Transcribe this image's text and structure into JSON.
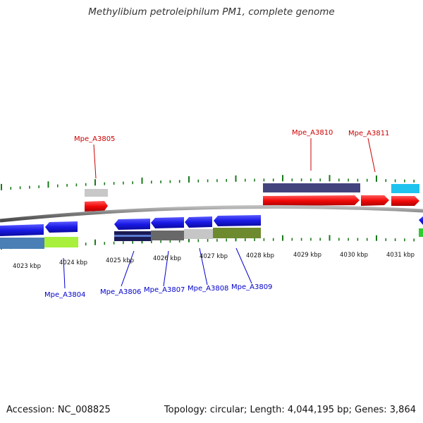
{
  "title": "Methylibium petroleiphilum PM1, complete genome",
  "footer": {
    "accession": "Accession: NC_008825",
    "stats": "Topology: circular; Length: 4,044,195 bp; Genes: 3,864"
  },
  "colors": {
    "forward_label": "#cc0000",
    "reverse_label": "#0000cc",
    "tick": "#1a7a1a",
    "backbone": "#8c8c8c"
  },
  "scale_labels": [
    "4023 kbp",
    "4024 kbp",
    "4025 kbp",
    "4026 kbp",
    "4027 kbp",
    "4028 kbp",
    "4029 kbp",
    "4030 kbp",
    "4031 kbp"
  ],
  "forward_gene_labels": [
    "Mpe_A3805",
    "Mpe_A3810",
    "Mpe_A3811"
  ],
  "reverse_gene_labels": [
    "Mpe_A3804",
    "Mpe_A3806",
    "Mpe_A3807",
    "Mpe_A3808",
    "Mpe_A3809"
  ]
}
